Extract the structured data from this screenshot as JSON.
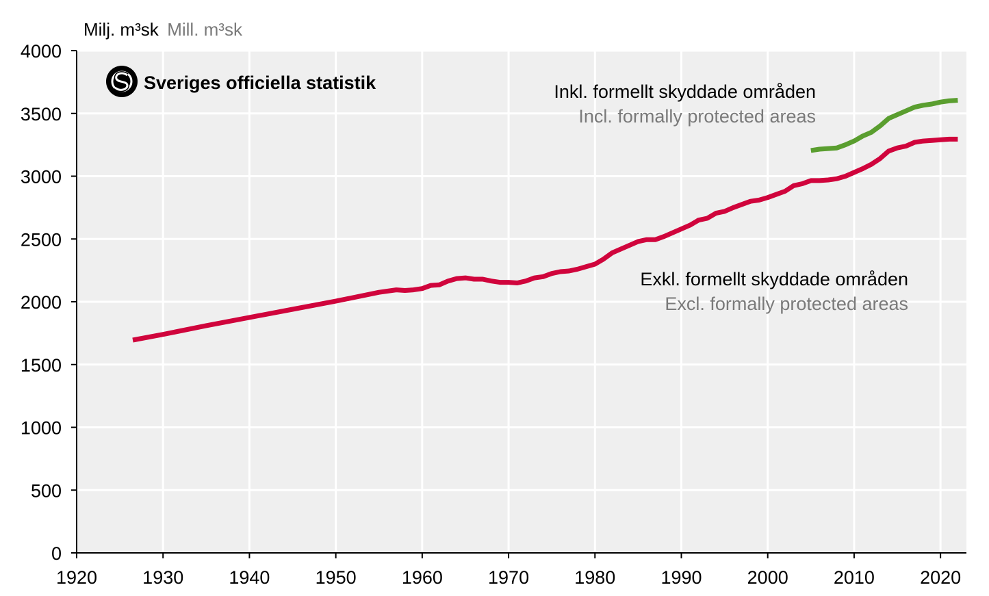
{
  "brand": {
    "name": "Sveriges officiella statistik",
    "icon": "sos-logo-icon"
  },
  "chart_data": {
    "type": "line",
    "unit_label_sv": "Milj. m³sk",
    "unit_label_en": "Mill. m³sk",
    "xlim": [
      1920,
      2023
    ],
    "ylim": [
      0,
      4000
    ],
    "x_ticks": [
      1920,
      1930,
      1940,
      1950,
      1960,
      1970,
      1980,
      1990,
      2000,
      2010,
      2020
    ],
    "y_ticks": [
      0,
      500,
      1000,
      1500,
      2000,
      2500,
      3000,
      3500,
      4000
    ],
    "grid": true,
    "colors": {
      "background": "#efefef",
      "grid": "#ffffff",
      "axis": "#000000"
    },
    "series": [
      {
        "key": "incl",
        "name_sv": "Inkl. formellt skyddade områden",
        "name_en": "Incl. formally protected areas",
        "color": "#5a9e2f",
        "points": [
          [
            2005,
            3205
          ],
          [
            2006,
            3215
          ],
          [
            2007,
            3220
          ],
          [
            2008,
            3225
          ],
          [
            2009,
            3250
          ],
          [
            2010,
            3280
          ],
          [
            2011,
            3320
          ],
          [
            2012,
            3350
          ],
          [
            2013,
            3400
          ],
          [
            2014,
            3460
          ],
          [
            2015,
            3490
          ],
          [
            2016,
            3520
          ],
          [
            2017,
            3550
          ],
          [
            2018,
            3565
          ],
          [
            2019,
            3575
          ],
          [
            2020,
            3590
          ],
          [
            2021,
            3600
          ],
          [
            2022,
            3605
          ]
        ]
      },
      {
        "key": "excl",
        "name_sv": "Exkl. formellt skyddade områden",
        "name_en": "Excl. formally protected areas",
        "color": "#d0043c",
        "points": [
          [
            1926.5,
            1695
          ],
          [
            1930,
            1740
          ],
          [
            1935,
            1810
          ],
          [
            1940,
            1875
          ],
          [
            1945,
            1940
          ],
          [
            1950,
            2005
          ],
          [
            1955,
            2075
          ],
          [
            1957,
            2095
          ],
          [
            1958,
            2090
          ],
          [
            1959,
            2095
          ],
          [
            1960,
            2105
          ],
          [
            1961,
            2130
          ],
          [
            1962,
            2135
          ],
          [
            1963,
            2165
          ],
          [
            1964,
            2185
          ],
          [
            1965,
            2190
          ],
          [
            1966,
            2180
          ],
          [
            1967,
            2180
          ],
          [
            1968,
            2165
          ],
          [
            1969,
            2155
          ],
          [
            1970,
            2155
          ],
          [
            1971,
            2150
          ],
          [
            1972,
            2165
          ],
          [
            1973,
            2190
          ],
          [
            1974,
            2200
          ],
          [
            1975,
            2225
          ],
          [
            1976,
            2240
          ],
          [
            1977,
            2245
          ],
          [
            1978,
            2260
          ],
          [
            1979,
            2280
          ],
          [
            1980,
            2300
          ],
          [
            1981,
            2340
          ],
          [
            1982,
            2390
          ],
          [
            1983,
            2420
          ],
          [
            1984,
            2450
          ],
          [
            1985,
            2480
          ],
          [
            1986,
            2495
          ],
          [
            1987,
            2495
          ],
          [
            1988,
            2520
          ],
          [
            1989,
            2550
          ],
          [
            1990,
            2580
          ],
          [
            1991,
            2610
          ],
          [
            1992,
            2650
          ],
          [
            1993,
            2665
          ],
          [
            1994,
            2705
          ],
          [
            1995,
            2720
          ],
          [
            1996,
            2750
          ],
          [
            1997,
            2775
          ],
          [
            1998,
            2800
          ],
          [
            1999,
            2810
          ],
          [
            2000,
            2830
          ],
          [
            2001,
            2855
          ],
          [
            2002,
            2880
          ],
          [
            2003,
            2925
          ],
          [
            2004,
            2940
          ],
          [
            2005,
            2965
          ],
          [
            2006,
            2965
          ],
          [
            2007,
            2970
          ],
          [
            2008,
            2980
          ],
          [
            2009,
            3000
          ],
          [
            2010,
            3030
          ],
          [
            2011,
            3060
          ],
          [
            2012,
            3095
          ],
          [
            2013,
            3140
          ],
          [
            2014,
            3200
          ],
          [
            2015,
            3225
          ],
          [
            2016,
            3240
          ],
          [
            2017,
            3270
          ],
          [
            2018,
            3280
          ],
          [
            2019,
            3285
          ],
          [
            2020,
            3290
          ],
          [
            2021,
            3295
          ],
          [
            2022,
            3295
          ]
        ]
      }
    ]
  }
}
